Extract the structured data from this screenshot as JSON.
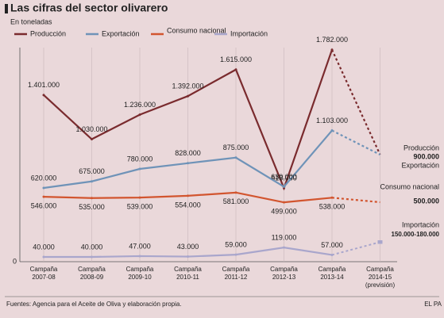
{
  "chart_data": {
    "type": "line",
    "title": "Las cifras del sector olivarero",
    "subtitle": "En toneladas",
    "categories": [
      [
        "Campaña",
        "2007-08"
      ],
      [
        "Campaña",
        "2008-09"
      ],
      [
        "Campaña",
        "2009-10"
      ],
      [
        "Campaña",
        "2010-11"
      ],
      [
        "Campaña",
        "2011-12"
      ],
      [
        "Campaña",
        "2012-13"
      ],
      [
        "Campaña",
        "2013-14"
      ],
      [
        "Campaña",
        "2014-15",
        "(previsión)"
      ]
    ],
    "forecast_index": 7,
    "series": [
      {
        "name": "Producción",
        "color": "#7a2b2e",
        "values": [
          1401000,
          1030000,
          1236000,
          1392000,
          1615000,
          618000,
          1782000,
          900000
        ],
        "value_labels": [
          "1.401.000",
          "1.030.000",
          "1.236.000",
          "1.392.000",
          "1.615.000",
          "618.000",
          "1.782.000",
          "900.000"
        ]
      },
      {
        "name": "Exportación",
        "color": "#6f93b8",
        "values": [
          620000,
          675000,
          780000,
          828000,
          875000,
          630000,
          1103000,
          900000
        ],
        "value_labels": [
          "620.000",
          "675.000",
          "780.000",
          "828.000",
          "875.000",
          "630.000",
          "1.103.000",
          null
        ]
      },
      {
        "name": "Consumo nacional",
        "color": "#d2552f",
        "values": [
          546000,
          535000,
          539000,
          554000,
          581000,
          499000,
          538000,
          500000
        ],
        "value_labels": [
          "546.000",
          "535.000",
          "539.000",
          "554.000",
          "581.000",
          "499.000",
          "538.000",
          "500.000"
        ]
      },
      {
        "name": "Importación",
        "color": "#a9a6cc",
        "values": [
          40000,
          40000,
          47000,
          43000,
          59000,
          119000,
          57000,
          null
        ],
        "value_labels": [
          "40.000",
          "40.000",
          "47.000",
          "43.000",
          "59.000",
          "119.000",
          "57.000",
          null
        ],
        "forecast_range": [
          150000,
          180000
        ],
        "forecast_range_label": "150.000-180.000"
      }
    ],
    "ylim": [
      0,
      2000000
    ],
    "yticks": [
      0
    ],
    "grid": true,
    "source": "Fuentes: Agencia para el Aceite de Oliva y elaboración propia.",
    "credit": "EL PA"
  }
}
